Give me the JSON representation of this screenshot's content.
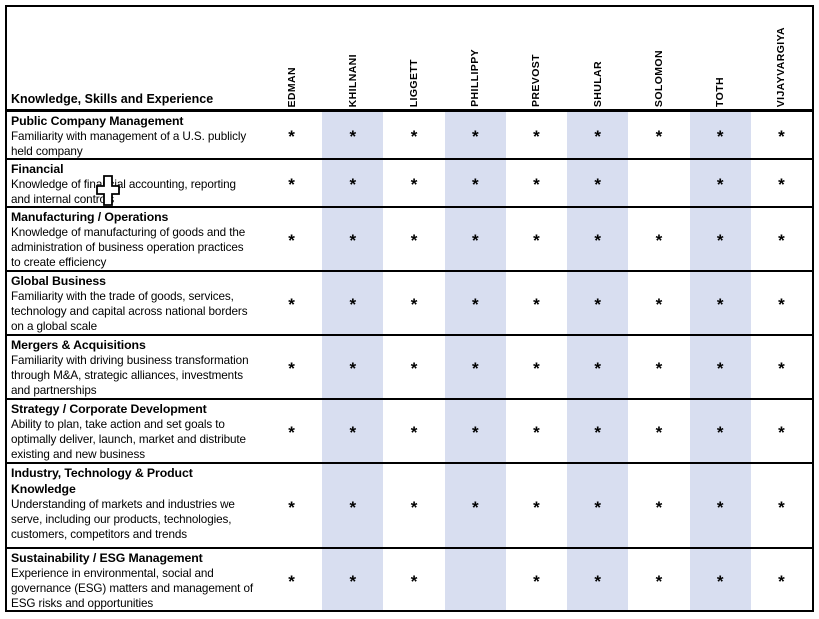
{
  "table": {
    "corner_label": "Knowledge, Skills and Experience",
    "columns": [
      "EDMAN",
      "KHILNANI",
      "LIGGETT",
      "PHILLIPPY",
      "PREVOST",
      "SHULAR",
      "SOLOMON",
      "TOTH",
      "VIJAYVARGIYA"
    ],
    "shaded_column_indexes": [
      1,
      3,
      5,
      7
    ],
    "mark_glyph": "*",
    "rows": [
      {
        "title": "Public Company Management",
        "description": "Familiarity with management of a U.S. publicly held company",
        "marks": [
          1,
          1,
          1,
          1,
          1,
          1,
          1,
          1,
          1
        ]
      },
      {
        "title": "Financial",
        "description": "Knowledge of financial accounting, reporting and internal controls",
        "marks": [
          1,
          1,
          1,
          1,
          1,
          1,
          0,
          1,
          1
        ]
      },
      {
        "title": "Manufacturing / Operations",
        "description": "Knowledge of manufacturing of goods and the administration of business operation practices to create efficiency",
        "marks": [
          1,
          1,
          1,
          1,
          1,
          1,
          1,
          1,
          1
        ]
      },
      {
        "title": "Global Business",
        "description": "Familiarity with the trade of goods, services, technology and capital across national borders on a global scale",
        "marks": [
          1,
          1,
          1,
          1,
          1,
          1,
          1,
          1,
          1
        ]
      },
      {
        "title": "Mergers & Acquisitions",
        "description": "Familiarity with driving business transformation through M&A, strategic alliances, investments and partnerships",
        "marks": [
          1,
          1,
          1,
          1,
          1,
          1,
          1,
          1,
          1
        ]
      },
      {
        "title": "Strategy / Corporate Development",
        "description": "Ability to plan, take action and set goals to optimally deliver, launch, market and distribute existing and new business",
        "marks": [
          1,
          1,
          1,
          1,
          1,
          1,
          1,
          1,
          1
        ]
      },
      {
        "title": "Industry, Technology & Product Knowledge",
        "description": "Understanding of markets and industries we serve, including our products, technologies, customers, competitors and trends",
        "marks": [
          1,
          1,
          1,
          1,
          1,
          1,
          1,
          1,
          1
        ]
      },
      {
        "title": "Sustainability / ESG Management",
        "description": "Experience in environmental, social and governance (ESG) matters and management of ESG risks and opportunities",
        "marks": [
          1,
          1,
          1,
          0,
          1,
          1,
          1,
          1,
          1
        ]
      }
    ]
  },
  "cursor": {
    "type": "excel-cell-cursor"
  },
  "colors": {
    "column_shade": "#d8def0",
    "border": "#000000",
    "text": "#000000",
    "background": "#ffffff"
  }
}
